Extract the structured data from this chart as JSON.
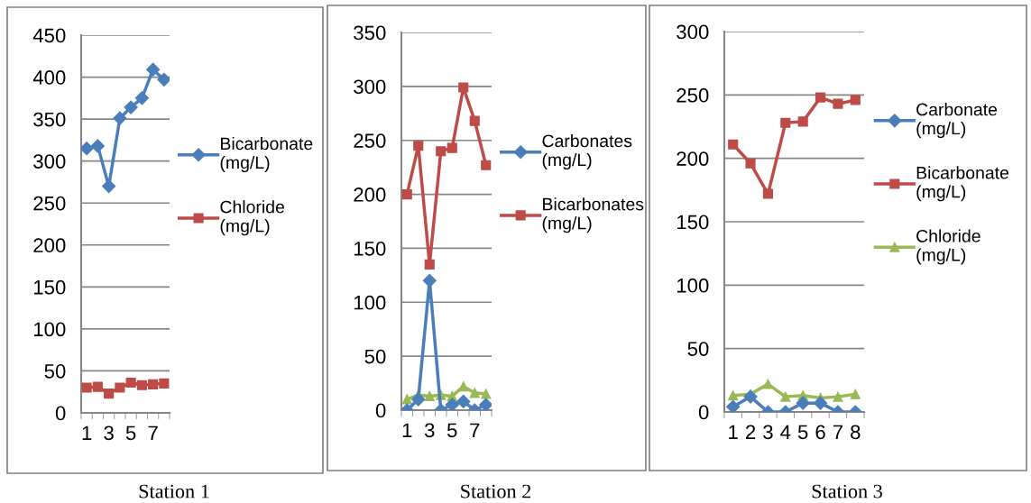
{
  "chart_data": [
    {
      "type": "line",
      "title": "Station 1",
      "categories": [
        "1",
        null,
        "3",
        null,
        "5",
        null,
        "7",
        null
      ],
      "ylim": [
        0,
        450
      ],
      "yticks": [
        0,
        50,
        100,
        150,
        200,
        250,
        300,
        350,
        400,
        450
      ],
      "grid": "y",
      "legend": "right",
      "series": [
        {
          "name": "Bicarbonate (mg/L)",
          "color": "#4a7ebb",
          "marker": "diamond",
          "values": [
            315,
            318,
            270,
            351,
            364,
            375,
            409,
            397
          ]
        },
        {
          "name": "Chloride (mg/L)",
          "color": "#be4b48",
          "marker": "square",
          "values": [
            30,
            31,
            23,
            30,
            36,
            33,
            34,
            35
          ]
        }
      ]
    },
    {
      "type": "line",
      "title": "Station 2",
      "categories": [
        "1",
        null,
        "3",
        null,
        "5",
        null,
        "7",
        null
      ],
      "ylim": [
        0,
        350
      ],
      "yticks": [
        0,
        50,
        100,
        150,
        200,
        250,
        300,
        350
      ],
      "grid": "y",
      "legend": "right",
      "series": [
        {
          "name": "Carbonates (mg/L)",
          "color": "#4a7ebb",
          "marker": "diamond",
          "values": [
            0,
            10,
            120,
            0,
            5,
            8,
            0,
            5
          ]
        },
        {
          "name": "Bicarbonates (mg/L)",
          "color": "#be4b48",
          "marker": "square",
          "values": [
            200,
            245,
            135,
            240,
            243,
            299,
            268,
            227
          ]
        },
        {
          "color": "#98b954",
          "marker": "triangle",
          "values": [
            10,
            14,
            13,
            14,
            13,
            22,
            16,
            15
          ]
        }
      ]
    },
    {
      "type": "line",
      "title": "Station 3",
      "categories": [
        "1",
        "2",
        "3",
        "4",
        "5",
        "6",
        "7",
        "8"
      ],
      "ylim": [
        0,
        300
      ],
      "yticks": [
        0,
        50,
        100,
        150,
        200,
        250,
        300
      ],
      "grid": "y",
      "legend": "right",
      "series": [
        {
          "name": "Carbonate (mg/L)",
          "color": "#4a7ebb",
          "marker": "diamond",
          "values": [
            4,
            12,
            0,
            0,
            7,
            7,
            0,
            0
          ]
        },
        {
          "name": "Bicarbonate (mg/L)",
          "color": "#be4b48",
          "marker": "square",
          "values": [
            211,
            196,
            172,
            228,
            229,
            248,
            243,
            246
          ]
        },
        {
          "name": "Chloride (mg/L)",
          "color": "#98b954",
          "marker": "triangle",
          "values": [
            13,
            14,
            22,
            12,
            13,
            11,
            12,
            14
          ]
        }
      ]
    }
  ]
}
